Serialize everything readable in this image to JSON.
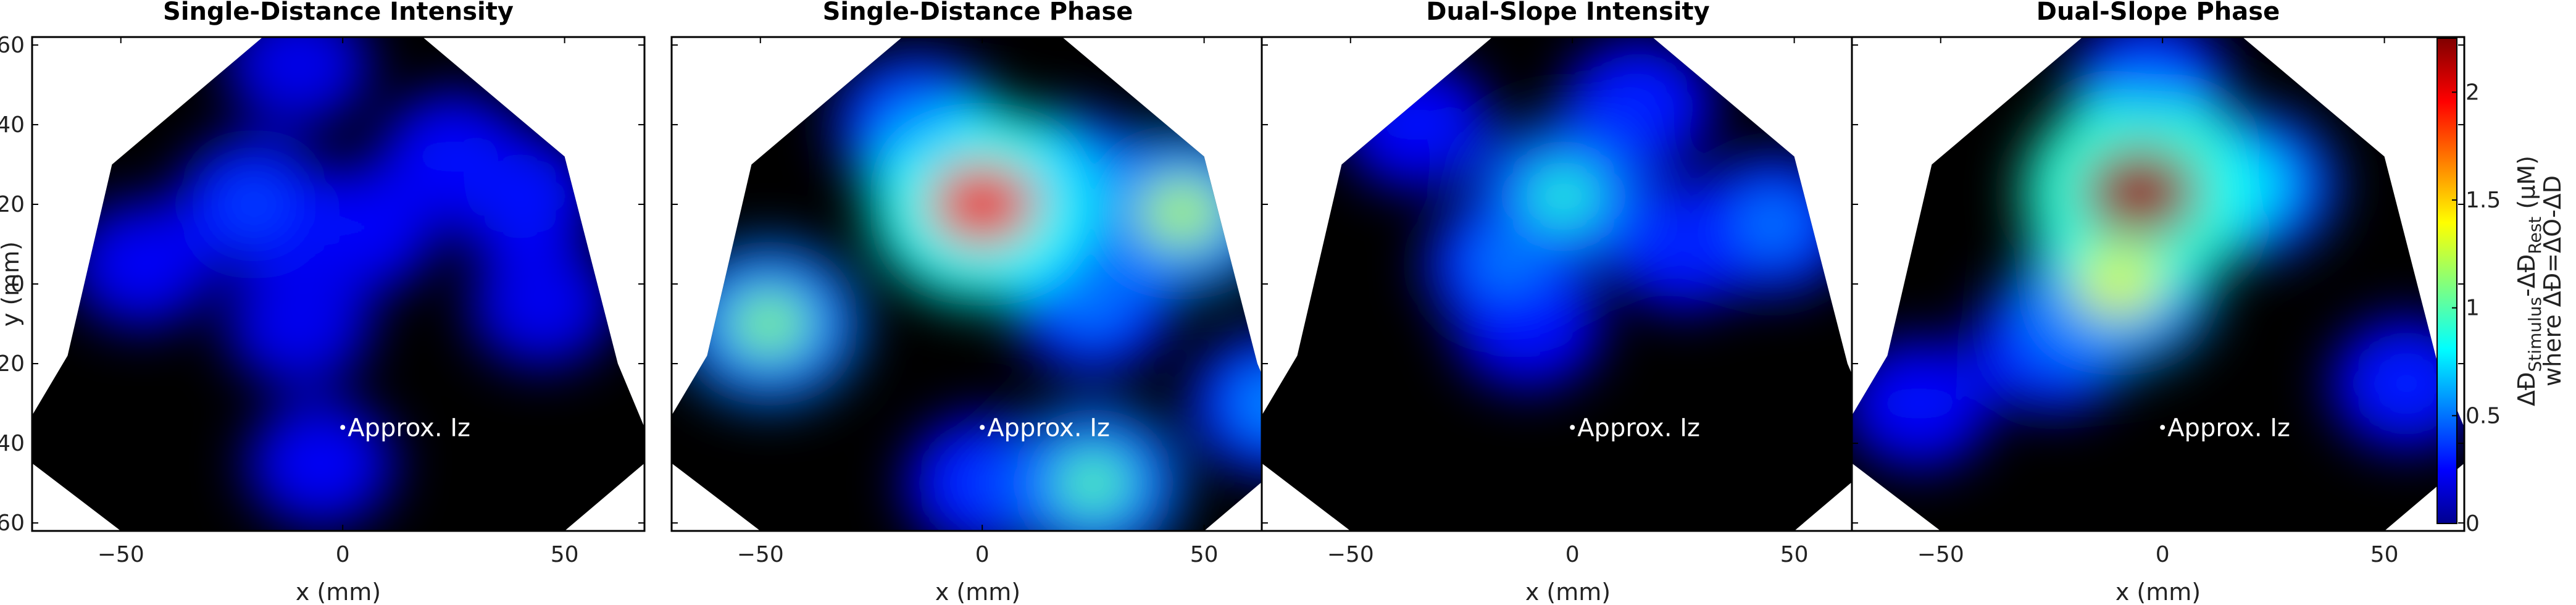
{
  "chart_data": {
    "type": "heatmap",
    "panels": [
      {
        "title": "Single-Distance Intensity",
        "blobs": [
          {
            "x": -20,
            "y": 20,
            "value": 0.42
          },
          {
            "x": 25,
            "y": 32,
            "value": 0.3
          },
          {
            "x": 40,
            "y": 22,
            "value": 0.32
          },
          {
            "x": 5,
            "y": 14,
            "value": 0.28
          },
          {
            "x": -45,
            "y": 5,
            "value": 0.25
          },
          {
            "x": -10,
            "y": -10,
            "value": 0.22
          },
          {
            "x": 45,
            "y": -5,
            "value": 0.22
          },
          {
            "x": -5,
            "y": -45,
            "value": 0.25
          },
          {
            "x": -10,
            "y": 55,
            "value": 0.2
          }
        ]
      },
      {
        "title": "Single-Distance Phase",
        "blobs": [
          {
            "x": 0,
            "y": 20,
            "value": 2.0
          },
          {
            "x": 45,
            "y": 18,
            "value": 1.2
          },
          {
            "x": -48,
            "y": -10,
            "value": 1.1
          },
          {
            "x": 20,
            "y": 25,
            "value": 0.75
          },
          {
            "x": -15,
            "y": 40,
            "value": 0.6
          },
          {
            "x": 25,
            "y": -5,
            "value": 0.55
          },
          {
            "x": 25,
            "y": -50,
            "value": 1.0
          },
          {
            "x": 0,
            "y": -50,
            "value": 0.4
          },
          {
            "x": 65,
            "y": -30,
            "value": 0.6
          }
        ]
      },
      {
        "title": "Dual-Slope Intensity",
        "blobs": [
          {
            "x": -2,
            "y": 22,
            "value": 0.9
          },
          {
            "x": -15,
            "y": 5,
            "value": 0.55
          },
          {
            "x": 45,
            "y": 15,
            "value": 0.55
          },
          {
            "x": 25,
            "y": 10,
            "value": 0.35
          },
          {
            "x": 15,
            "y": 45,
            "value": 0.35
          },
          {
            "x": -10,
            "y": -10,
            "value": 0.3
          },
          {
            "x": -35,
            "y": 40,
            "value": 0.3
          }
        ]
      },
      {
        "title": "Dual-Slope Phase",
        "blobs": [
          {
            "x": -5,
            "y": 23,
            "value": 2.2
          },
          {
            "x": -10,
            "y": 0,
            "value": 1.3
          },
          {
            "x": 20,
            "y": 25,
            "value": 0.8
          },
          {
            "x": -25,
            "y": -15,
            "value": 0.5
          },
          {
            "x": -3,
            "y": 50,
            "value": 0.5
          },
          {
            "x": 55,
            "y": -25,
            "value": 0.35
          },
          {
            "x": -55,
            "y": -30,
            "value": 0.3
          }
        ]
      }
    ],
    "xlabel": "x (mm)",
    "ylabel": "y (mm)",
    "xlim": [
      -70,
      68
    ],
    "ylim": [
      -62,
      62
    ],
    "xticks": [
      -50,
      0,
      50
    ],
    "yticks": [
      -60,
      -40,
      -20,
      0,
      20,
      40,
      60
    ],
    "annotation": {
      "text": "Approx. Iz",
      "x": 0,
      "y": -36
    },
    "colorbar": {
      "range": [
        0,
        2.25
      ],
      "ticks": [
        0,
        0.5,
        1,
        1.5,
        2
      ],
      "tick_labels": [
        "0",
        "0.5",
        "1",
        "1.5",
        "2"
      ],
      "label_line1": "ΔĐ",
      "label_sub1": "Stimulus",
      "label_mid": "-ΔĐ",
      "label_sub2": "Rest",
      "label_unit": " (μM)",
      "label_line2": "where ΔĐ=ΔO-ΔD",
      "colormap": "jet"
    }
  }
}
